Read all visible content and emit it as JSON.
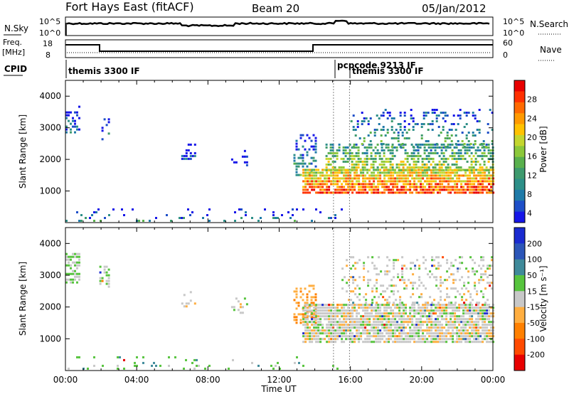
{
  "header": {
    "station": "Fort Hays East (fitACF)",
    "beam": "Beam 20",
    "date": "05/Jan/2012"
  },
  "panel_labels": {
    "nsky": "N.Sky",
    "freq": "Freq.",
    "freq_unit": "[MHz]",
    "cpid": "CPID",
    "nsearch": "N.Search",
    "nave": "Nave"
  },
  "noise_ticks": {
    "left": [
      "10^5",
      "10^0"
    ],
    "right": [
      "10^5",
      "10^0"
    ]
  },
  "freq_ticks": {
    "left": [
      "18",
      "8"
    ],
    "right": [
      "60",
      "0"
    ]
  },
  "cpid_labels": [
    {
      "text": "themis 3300 IF",
      "hour": 0.1
    },
    {
      "text": "pcpcode 9213 IF",
      "hour": 15.0
    },
    {
      "text": "themis 3300 IF",
      "hour": 15.75
    }
  ],
  "chart_data": [
    {
      "type": "heatmap",
      "title": "Power",
      "xlabel": "",
      "ylabel": "Slant Range [km]",
      "xlim_hours": [
        0,
        24
      ],
      "ylim": [
        0,
        4500
      ],
      "ytick_labels": [
        "1000",
        "2000",
        "3000",
        "4000"
      ],
      "colorbar": {
        "label": "Power [dB]",
        "tick_labels": [
          "28",
          "24",
          "20",
          "16",
          "12",
          "8",
          "4"
        ],
        "colors": [
          "#1616e8",
          "#1e4fc8",
          "#1f7aa8",
          "#2d8f88",
          "#3e9a6e",
          "#59b04d",
          "#8cc83a",
          "#c4d62e",
          "#ffc200",
          "#ff9a00",
          "#ff6a00",
          "#ff3000",
          "#e80000"
        ]
      },
      "scatter_regions": [
        {
          "h0": 0.0,
          "h1": 0.8,
          "r0": 2800,
          "r1": 3700,
          "level": 0.25,
          "density": 0.45
        },
        {
          "h0": 1.9,
          "h1": 2.4,
          "r0": 2600,
          "r1": 3300,
          "level": 0.3,
          "density": 0.35
        },
        {
          "h0": 6.5,
          "h1": 7.3,
          "r0": 2000,
          "r1": 2500,
          "level": 0.2,
          "density": 0.3
        },
        {
          "h0": 9.3,
          "h1": 10.2,
          "r0": 1800,
          "r1": 2300,
          "level": 0.15,
          "density": 0.25
        },
        {
          "h0": 12.8,
          "h1": 14.1,
          "r0": 1500,
          "r1": 2800,
          "level": 0.35,
          "density": 0.4
        },
        {
          "h0": 13.3,
          "h1": 24.0,
          "r0": 900,
          "r1": 1700,
          "level": 0.92,
          "density": 0.85
        },
        {
          "h0": 14.6,
          "h1": 24.0,
          "r0": 1600,
          "r1": 2500,
          "level": 0.6,
          "density": 0.6
        },
        {
          "h0": 16.0,
          "h1": 24.0,
          "r0": 2400,
          "r1": 3600,
          "level": 0.4,
          "density": 0.2
        },
        {
          "h0": 0.0,
          "h1": 15.5,
          "r0": 80,
          "r1": 450,
          "level": 0.3,
          "density": 0.08
        }
      ]
    },
    {
      "type": "heatmap",
      "title": "Velocity",
      "xlabel": "Time UT",
      "ylabel": "Slant Range [km]",
      "xlim_hours": [
        0,
        24
      ],
      "ylim": [
        0,
        4500
      ],
      "ytick_labels": [
        "1000",
        "2000",
        "3000",
        "4000"
      ],
      "xtick_labels": [
        "00:00",
        "04:00",
        "08:00",
        "12:00",
        "16:00",
        "20:00",
        "00:00"
      ],
      "colorbar": {
        "label": "Velocity [m s⁻¹]",
        "tick_labels": [
          "200",
          "100",
          "50",
          "15",
          "-15",
          "-50",
          "-100",
          "-200"
        ],
        "colors": [
          "#1a2bd0",
          "#2c56b8",
          "#3f8a9a",
          "#57c43e",
          "#c8c8c8",
          "#ffae40",
          "#ff8000",
          "#ff4a00",
          "#e80000"
        ]
      },
      "scatter_regions": [
        {
          "h0": 0.0,
          "h1": 0.8,
          "r0": 2800,
          "r1": 3700,
          "level": 0.55,
          "density": 0.5
        },
        {
          "h0": 1.9,
          "h1": 2.4,
          "r0": 2600,
          "r1": 3300,
          "level": 0.55,
          "density": 0.35
        },
        {
          "h0": 6.5,
          "h1": 7.3,
          "r0": 2000,
          "r1": 2500,
          "level": 0.5,
          "density": 0.3
        },
        {
          "h0": 9.3,
          "h1": 10.2,
          "r0": 1800,
          "r1": 2300,
          "level": 0.5,
          "density": 0.25
        },
        {
          "h0": 12.8,
          "h1": 14.1,
          "r0": 1500,
          "r1": 2700,
          "level": 0.35,
          "density": 0.45
        },
        {
          "h0": 13.3,
          "h1": 24.0,
          "r0": 900,
          "r1": 2100,
          "level": 0.5,
          "density": 0.85
        },
        {
          "h0": 15.5,
          "h1": 24.0,
          "r0": 2100,
          "r1": 3600,
          "level": 0.5,
          "density": 0.25
        },
        {
          "h0": 0.0,
          "h1": 15.5,
          "r0": 80,
          "r1": 450,
          "level": 0.62,
          "density": 0.08
        }
      ]
    }
  ]
}
